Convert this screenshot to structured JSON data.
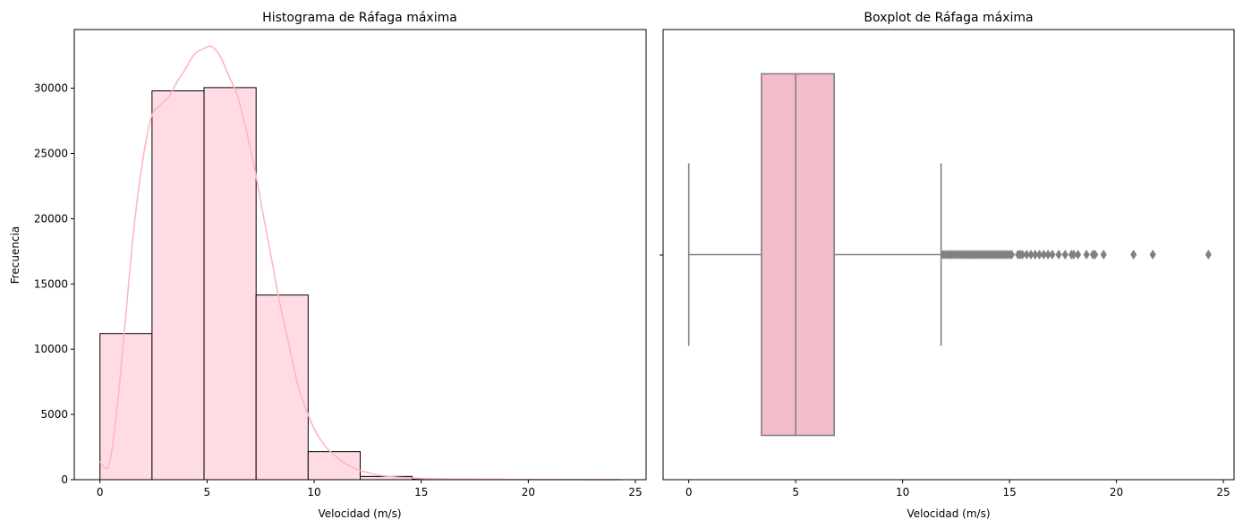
{
  "chart_data": [
    {
      "type": "bar",
      "title": "Histograma de Ráfaga máxima",
      "xlabel": "Velocidad (m/s)",
      "ylabel": "Frecuencia",
      "xlim": [
        -1.2,
        25.5
      ],
      "ylim": [
        0,
        34500
      ],
      "xticks": [
        0,
        5,
        10,
        15,
        20,
        25
      ],
      "yticks": [
        0,
        5000,
        10000,
        15000,
        20000,
        25000,
        30000
      ],
      "bin_edges": [
        0,
        2.43,
        4.86,
        7.29,
        9.72,
        12.15,
        14.58,
        17.01,
        19.44,
        21.87,
        24.3
      ],
      "values": [
        11200,
        29800,
        30050,
        14150,
        2150,
        250,
        40,
        12,
        4,
        2
      ],
      "bar_color": "#ffdce3",
      "edge_color": "#000000",
      "kde": {
        "color": "#ffb6c1",
        "x": [
          0,
          0.2,
          0.45,
          0.8,
          1.2,
          1.6,
          2.0,
          2.4,
          2.8,
          3.2,
          3.6,
          4.0,
          4.4,
          4.8,
          5.2,
          5.6,
          6.0,
          6.4,
          6.8,
          7.2,
          7.6,
          8.0,
          8.4,
          8.8,
          9.2,
          9.6,
          10.0,
          10.5,
          11.0,
          11.5,
          12.0,
          12.5,
          13.0,
          13.5,
          14.0,
          15.0,
          16.0,
          18.0,
          20.0,
          22.0,
          24.3
        ],
        "y": [
          1400,
          950,
          1300,
          5500,
          12500,
          19500,
          24500,
          27800,
          28700,
          29300,
          30500,
          31500,
          32600,
          33000,
          33200,
          32500,
          31000,
          29500,
          27000,
          24000,
          20500,
          17000,
          13500,
          10500,
          7500,
          5500,
          3900,
          2600,
          1800,
          1200,
          800,
          550,
          350,
          250,
          180,
          100,
          60,
          30,
          15,
          8,
          5
        ]
      }
    },
    {
      "type": "boxplot",
      "title": "Boxplot de Ráfaga máxima",
      "xlabel": "Velocidad (m/s)",
      "xlim": [
        -1.2,
        25.5
      ],
      "xticks": [
        0,
        5,
        10,
        15,
        20,
        25
      ],
      "whisker_low": 0,
      "q1": 3.4,
      "median": 5.0,
      "q3": 6.8,
      "whisker_high": 11.8,
      "outliers": [
        11.9,
        12.0,
        12.1,
        12.2,
        12.3,
        12.4,
        12.5,
        12.6,
        12.7,
        12.8,
        12.9,
        13.0,
        13.1,
        13.2,
        13.3,
        13.4,
        13.5,
        13.6,
        13.7,
        13.8,
        13.9,
        14.0,
        14.1,
        14.2,
        14.3,
        14.4,
        14.5,
        14.6,
        14.7,
        14.8,
        14.9,
        15.0,
        15.1,
        15.4,
        15.5,
        15.6,
        15.8,
        16.0,
        16.2,
        16.4,
        16.6,
        16.8,
        17.0,
        17.3,
        17.6,
        17.9,
        18.0,
        18.2,
        18.6,
        18.9,
        19.0,
        19.4,
        20.8,
        21.7,
        24.3
      ],
      "box_color": "#f4bcc8",
      "line_color": "#808080"
    }
  ]
}
